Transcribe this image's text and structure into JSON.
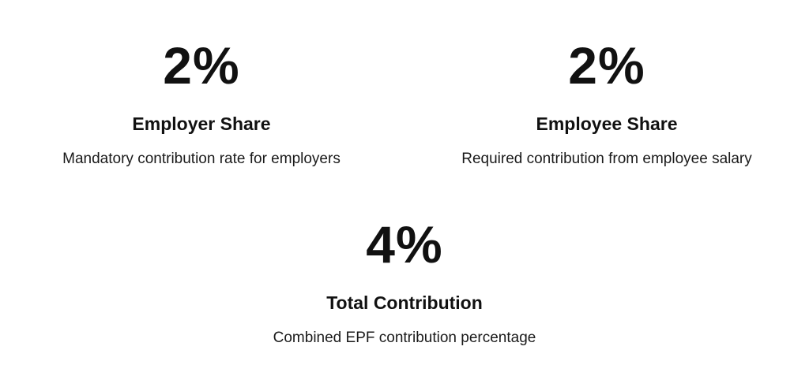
{
  "stats": [
    {
      "value": "2%",
      "title": "Employer Share",
      "description": "Mandatory contribution rate for employers"
    },
    {
      "value": "2%",
      "title": "Employee Share",
      "description": "Required contribution from employee salary"
    },
    {
      "value": "4%",
      "title": "Total Contribution",
      "description": "Combined EPF contribution percentage"
    }
  ]
}
